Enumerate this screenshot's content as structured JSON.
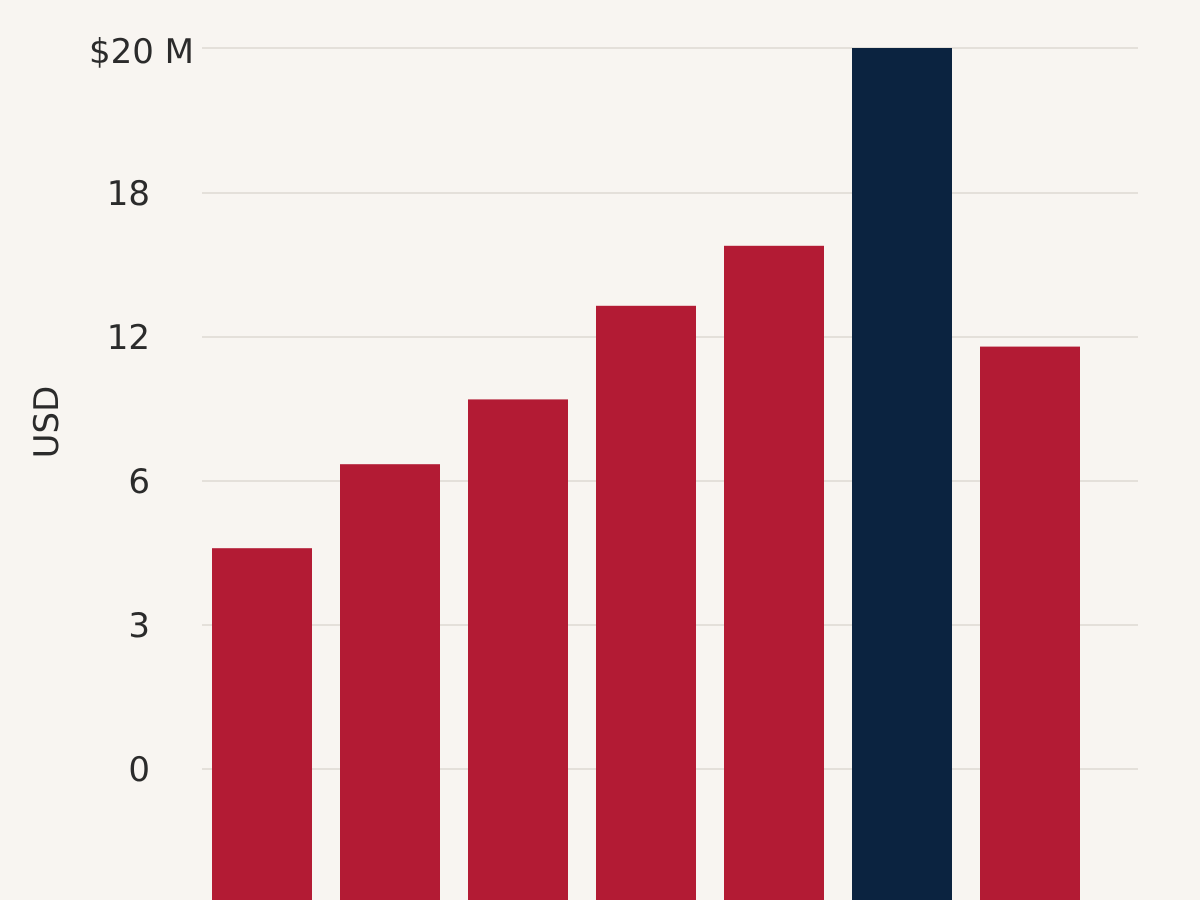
{
  "chart_data": {
    "type": "bar",
    "title": "",
    "xlabel": "",
    "ylabel": "USD",
    "grid": true,
    "y_ticks": [
      {
        "label": "0",
        "value": 0
      },
      {
        "label": "3",
        "value": 3
      },
      {
        "label": "6",
        "value": 6
      },
      {
        "label": "12",
        "value": 12
      },
      {
        "label": "18",
        "value": 18
      },
      {
        "label": "$20 M",
        "value": 20
      }
    ],
    "series": [
      {
        "values": [
          4.6,
          6.7,
          9.4,
          13.3,
          15.8,
          20.0,
          11.6
        ],
        "colors": [
          "#b31b34",
          "#b31b34",
          "#b31b34",
          "#b31b34",
          "#b31b34",
          "#0b2340",
          "#b31b34"
        ]
      }
    ],
    "colors": {
      "primary": "#b31b34",
      "highlight": "#0b2340",
      "background": "#f8f5f1",
      "grid": "#cfcac4"
    }
  }
}
